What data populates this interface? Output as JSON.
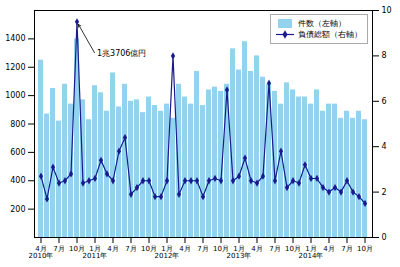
{
  "chart_data": {
    "type": "bar",
    "categories": [
      "4月\n2010年",
      null,
      null,
      "7月",
      null,
      null,
      "10月",
      null,
      null,
      "1月\n2011年",
      null,
      null,
      "4月",
      null,
      null,
      "7月",
      null,
      null,
      "10月",
      null,
      null,
      "1月\n2012年",
      null,
      null,
      "4月",
      null,
      null,
      "7月",
      null,
      null,
      "10月",
      null,
      null,
      "1月\n2013年",
      null,
      null,
      "4月",
      null,
      null,
      "7月",
      null,
      null,
      "10月",
      null,
      null,
      "1月\n2014年",
      null,
      null,
      "4月",
      null,
      null,
      "7月",
      null,
      null,
      "10月"
    ],
    "series": [
      {
        "name": "件数（左軸）",
        "type": "bar",
        "color": "#87CEEB",
        "values": [
          1250,
          870,
          1050,
          820,
          1080,
          940,
          1400,
          970,
          830,
          1070,
          1020,
          890,
          1160,
          920,
          1080,
          960,
          970,
          880,
          990,
          930,
          890,
          940,
          840,
          1080,
          990,
          940,
          1170,
          930,
          1040,
          1060,
          1030,
          1080,
          1330,
          1180,
          1380,
          1170,
          1280,
          1130,
          1080,
          1030,
          940,
          1090,
          1040,
          990,
          990,
          940,
          1040,
          890,
          940,
          940,
          840,
          890,
          840,
          890,
          830
        ]
      },
      {
        "name": "負債総額（右軸）",
        "type": "line",
        "axis": "y2",
        "color": "#1a1a8c",
        "marker": "diamond",
        "values": [
          2.7,
          1.7,
          3.1,
          2.4,
          2.5,
          2.8,
          9.5,
          2.4,
          2.5,
          2.6,
          3.4,
          2.8,
          2.5,
          3.8,
          4.4,
          1.9,
          2.2,
          2.5,
          2.5,
          1.8,
          1.8,
          2.5,
          8.0,
          1.9,
          2.5,
          2.5,
          2.5,
          1.8,
          2.5,
          2.6,
          2.5,
          6.5,
          2.5,
          2.7,
          3.5,
          2.5,
          2.4,
          2.7,
          6.8,
          2.5,
          3.8,
          2.2,
          2.5,
          2.4,
          3.2,
          2.6,
          2.6,
          2.2,
          2.0,
          2.2,
          2.0,
          2.5,
          2.0,
          1.8,
          1.5
        ]
      }
    ],
    "ylim": [
      0,
      1600
    ],
    "yticks": [
      200,
      400,
      600,
      800,
      1000,
      1200,
      1400
    ],
    "y2lim": [
      0,
      10
    ],
    "y2ticks": [
      0,
      2,
      4,
      6,
      8,
      10
    ],
    "annotations": [
      "1兆3706億円"
    ],
    "legend": "upper right",
    "grid": false
  }
}
